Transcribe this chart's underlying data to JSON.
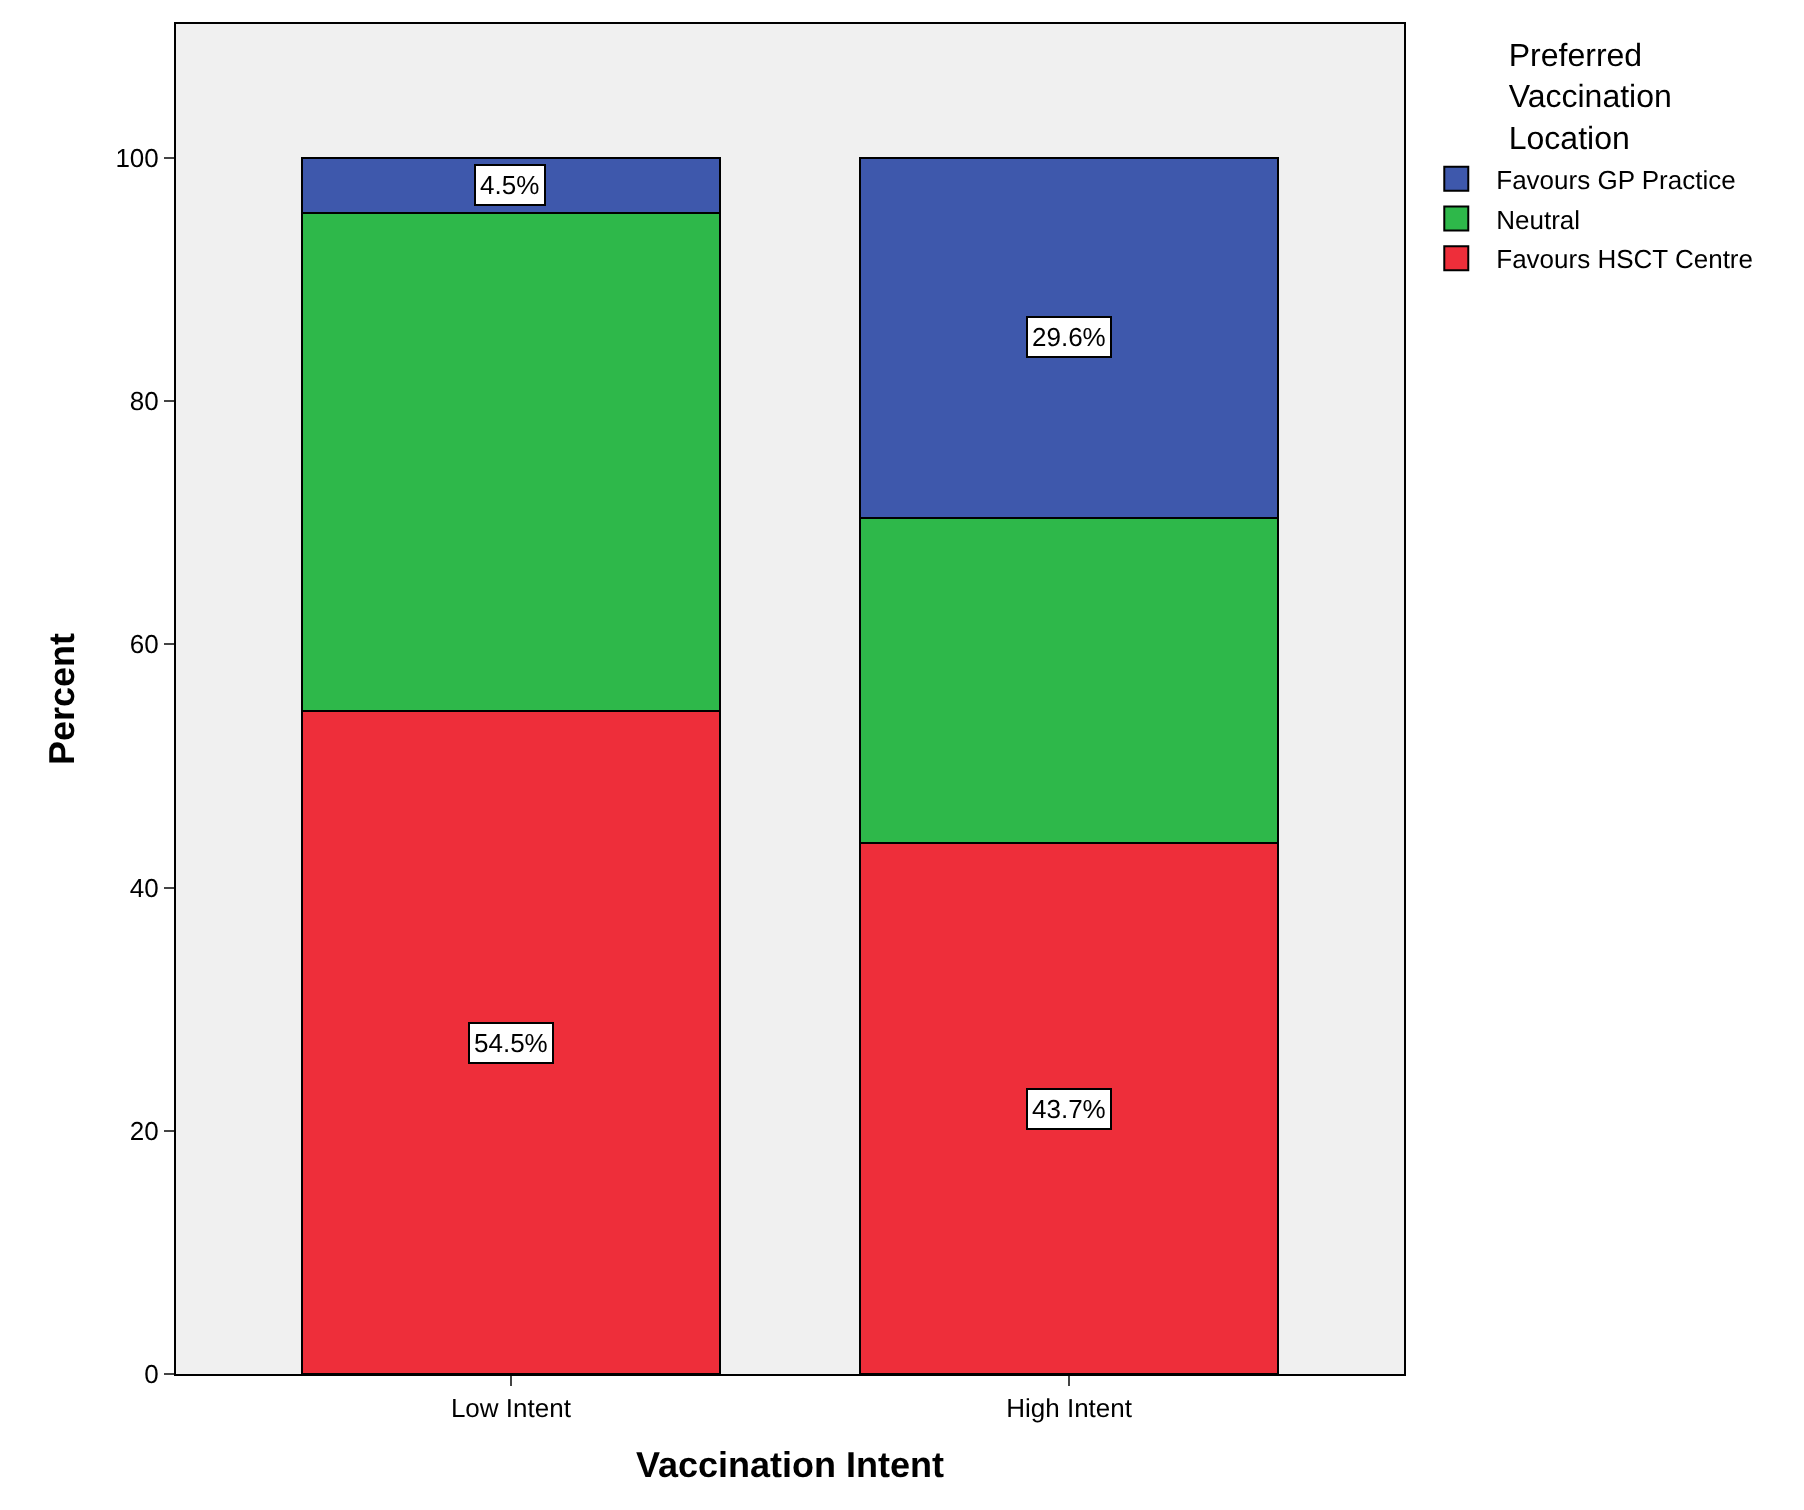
{
  "chart_data": {
    "type": "bar",
    "stacked": true,
    "xlabel": "Vaccination Intent",
    "ylabel": "Percent",
    "legend_title": "Preferred Vaccination Location",
    "legend": "top right",
    "categories": [
      "Low Intent",
      "High Intent"
    ],
    "series": [
      {
        "name": "Favours HSCT Centre",
        "color": "#ee2e3a",
        "values": [
          54.5,
          43.7
        ],
        "value_labels": [
          "54.5%",
          "43.7%"
        ]
      },
      {
        "name": "Neutral",
        "color": "#2eb84a",
        "values": [
          41.0,
          26.7
        ],
        "value_labels": [
          null,
          null
        ]
      },
      {
        "name": "Favours GP Practice",
        "color": "#3e58ac",
        "values": [
          4.5,
          29.6
        ],
        "value_labels": [
          "4.5%",
          "29.6%"
        ]
      }
    ],
    "ylim": [
      0,
      111
    ],
    "yticks": [
      0,
      20,
      40,
      60,
      80,
      100
    ],
    "grid": false
  }
}
